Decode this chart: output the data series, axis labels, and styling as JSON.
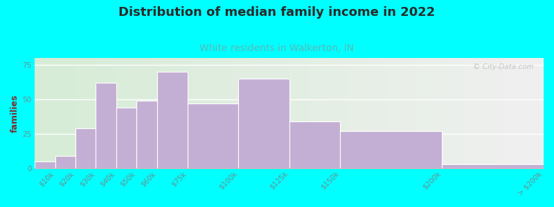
{
  "title": "Distribution of median family income in 2022",
  "subtitle": "White residents in Walkerton, IN",
  "ylabel": "families",
  "bar_color": "#c4afd4",
  "bar_edgecolor": "#ffffff",
  "background_color": "#00ffff",
  "plot_bg_left": "#d6ecd6",
  "plot_bg_right": "#f0f0f0",
  "title_color": "#2a2a2a",
  "subtitle_color": "#5ab8b8",
  "ylabel_color": "#7a3030",
  "tick_label_color": "#6a9090",
  "ytick_values": [
    0,
    25,
    50,
    75
  ],
  "ylim": [
    0,
    80
  ],
  "title_fontsize": 13,
  "subtitle_fontsize": 10,
  "ylabel_fontsize": 9,
  "tick_fontsize": 7.5,
  "watermark_text": "© City-Data.com",
  "watermark_color": "#bbbbbb",
  "bin_edges": [
    0,
    10,
    20,
    30,
    40,
    50,
    60,
    75,
    100,
    125,
    150,
    200,
    250
  ],
  "bin_labels": [
    "$10k",
    "$20k",
    "$30k",
    "$40k",
    "$50k",
    "$60k",
    "$75k",
    "$100k",
    "$125k",
    "$150k",
    "$200k",
    "> $200k"
  ],
  "counts": [
    5,
    9,
    29,
    62,
    44,
    49,
    70,
    47,
    65,
    34,
    27,
    3
  ]
}
